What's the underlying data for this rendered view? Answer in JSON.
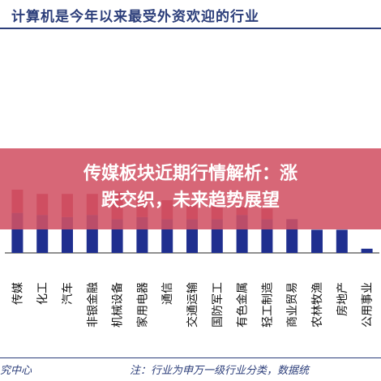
{
  "header": {
    "title": "计算机是今年以来最受外资欢迎的行业"
  },
  "banner": {
    "line1": "传媒板块近期行情解析：涨",
    "line2": "跌交织，未来趋势展望"
  },
  "footer": {
    "source": "究中心",
    "note": "注：行业为申万一级行业分类，数据统"
  },
  "colors": {
    "series_top": "#b8334a",
    "series_bottom": "#1f2f8f",
    "text": "#2c3e7a"
  },
  "chart_data": {
    "type": "bar",
    "stacked": true,
    "categories": [
      "传媒",
      "化工",
      "汽车",
      "非银金融",
      "机械设备",
      "家用电器",
      "通信",
      "交通运输",
      "国防军工",
      "有色金属",
      "轻工制造",
      "商业贸易",
      "农林牧渔",
      "房地产",
      "公用事业"
    ],
    "series": [
      {
        "values": [
          0.95,
          0.9,
          0.85,
          0.9,
          0.8,
          0.85,
          0.8,
          0.8,
          0.8,
          0.9,
          0.8,
          0.8,
          0.55,
          0.55,
          0.1
        ]
      },
      {
        "values": [
          0.55,
          0.5,
          0.55,
          0.5,
          0.65,
          0.5,
          0.45,
          0.35,
          0.3,
          0.2,
          0.25,
          0.0,
          0.0,
          0.0,
          0.0
        ]
      }
    ],
    "xlabel": "",
    "ylabel": "",
    "grid": false,
    "legend": "none"
  }
}
